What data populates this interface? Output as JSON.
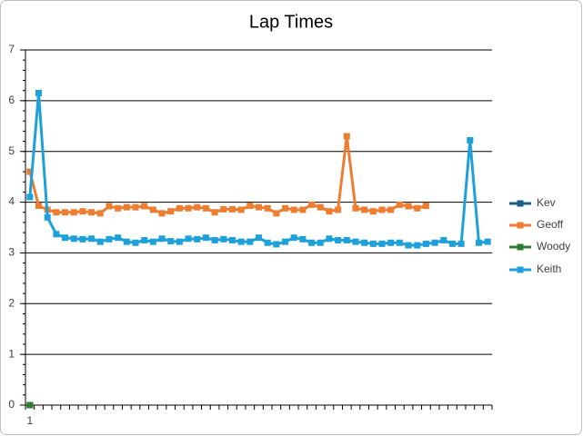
{
  "chart_data": {
    "type": "line",
    "title": "Lap Times",
    "categories": [
      "1",
      null,
      null,
      null,
      null,
      null,
      null,
      null,
      null,
      null,
      null,
      null,
      null,
      null,
      null,
      null,
      null,
      null,
      null,
      null,
      null,
      null,
      null,
      null,
      null,
      null,
      null,
      null,
      null,
      null,
      null,
      null,
      null,
      null,
      null,
      null,
      null,
      null,
      null,
      null,
      null,
      null,
      null,
      null,
      null,
      null,
      null,
      null,
      null,
      null,
      null,
      null,
      null
    ],
    "series": [
      {
        "name": "Kev",
        "color": "#1f5f86",
        "values": [
          0,
          null,
          null,
          null,
          null,
          null,
          null,
          null,
          null,
          null,
          null,
          null,
          null,
          null,
          null,
          null,
          null,
          null,
          null,
          null,
          null,
          null,
          null,
          null,
          null,
          null,
          null,
          null,
          null,
          null,
          null,
          null,
          null,
          null,
          null,
          null,
          null,
          null,
          null,
          null,
          null,
          null,
          null,
          null,
          null,
          null,
          null,
          null,
          null,
          null,
          null,
          null,
          null
        ]
      },
      {
        "name": "Geoff",
        "color": "#ed7d31",
        "values": [
          4.6,
          3.93,
          3.85,
          3.8,
          3.8,
          3.8,
          3.82,
          3.8,
          3.78,
          3.92,
          3.88,
          3.9,
          3.9,
          3.92,
          3.85,
          3.78,
          3.82,
          3.88,
          3.88,
          3.9,
          3.88,
          3.8,
          3.86,
          3.86,
          3.85,
          3.93,
          3.9,
          3.88,
          3.78,
          3.88,
          3.85,
          3.85,
          3.95,
          3.9,
          3.82,
          3.85,
          5.3,
          3.88,
          3.85,
          3.82,
          3.85,
          3.85,
          3.95,
          3.92,
          3.88,
          3.93,
          null,
          null,
          null,
          null,
          null,
          null,
          null
        ]
      },
      {
        "name": "Woody",
        "color": "#2e7d32",
        "values": [
          0,
          null,
          null,
          null,
          null,
          null,
          null,
          null,
          null,
          null,
          null,
          null,
          null,
          null,
          null,
          null,
          null,
          null,
          null,
          null,
          null,
          null,
          null,
          null,
          null,
          null,
          null,
          null,
          null,
          null,
          null,
          null,
          null,
          null,
          null,
          null,
          null,
          null,
          null,
          null,
          null,
          null,
          null,
          null,
          null,
          null,
          null,
          null,
          null,
          null,
          null,
          null,
          null
        ]
      },
      {
        "name": "Keith",
        "color": "#1ea1db",
        "values": [
          4.1,
          6.15,
          3.7,
          3.37,
          3.3,
          3.28,
          3.27,
          3.28,
          3.22,
          3.27,
          3.3,
          3.22,
          3.2,
          3.25,
          3.22,
          3.28,
          3.23,
          3.22,
          3.28,
          3.27,
          3.3,
          3.25,
          3.27,
          3.25,
          3.22,
          3.22,
          3.3,
          3.2,
          3.17,
          3.22,
          3.3,
          3.27,
          3.2,
          3.2,
          3.28,
          3.25,
          3.25,
          3.22,
          3.2,
          3.18,
          3.18,
          3.2,
          3.2,
          3.15,
          3.15,
          3.18,
          3.2,
          3.25,
          3.18,
          3.18,
          5.22,
          3.2,
          3.22
        ]
      }
    ],
    "ylim": [
      0,
      7
    ],
    "yticks": [
      0,
      1,
      2,
      3,
      4,
      5,
      6,
      7
    ],
    "grid": true,
    "legend": "right"
  }
}
